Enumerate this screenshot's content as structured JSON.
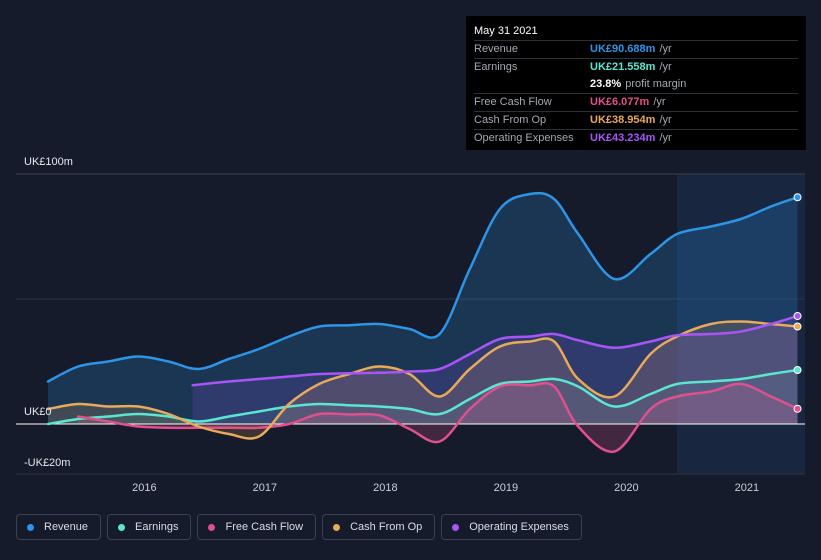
{
  "tooltip": {
    "date": "May 31 2021",
    "rows": [
      {
        "label": "Revenue",
        "value": "UK£90.688m",
        "unit": "/yr",
        "color": "#2d94e6"
      },
      {
        "label": "Earnings",
        "value": "UK£21.558m",
        "unit": "/yr",
        "color": "#5ce6d1"
      },
      {
        "label": "",
        "value": "23.8%",
        "unit": "profit margin",
        "color": "#ffffff"
      },
      {
        "label": "Free Cash Flow",
        "value": "UK£6.077m",
        "unit": "/yr",
        "color": "#e0508f"
      },
      {
        "label": "Cash From Op",
        "value": "UK£38.954m",
        "unit": "/yr",
        "color": "#e8a95a"
      },
      {
        "label": "Operating Expenses",
        "value": "UK£43.234m",
        "unit": "/yr",
        "color": "#a855f7"
      }
    ]
  },
  "axis": {
    "y_top_label": "UK£100m",
    "y_zero_label": "UK£0",
    "y_bottom_label": "-UK£20m",
    "x_ticks": [
      "2016",
      "2017",
      "2018",
      "2019",
      "2020",
      "2021"
    ]
  },
  "legend": [
    {
      "label": "Revenue",
      "color": "#2d94e6"
    },
    {
      "label": "Earnings",
      "color": "#5ce6d1"
    },
    {
      "label": "Free Cash Flow",
      "color": "#e0508f"
    },
    {
      "label": "Cash From Op",
      "color": "#e8a95a"
    },
    {
      "label": "Operating Expenses",
      "color": "#a855f7"
    }
  ],
  "chart_data": {
    "type": "line",
    "ylim": [
      -20,
      100
    ],
    "xlim": [
      2015.2,
      2021.42
    ],
    "highlight_start": 2020.42,
    "series": [
      {
        "name": "Revenue",
        "color": "#2d94e6",
        "x": [
          2015.2,
          2015.45,
          2015.7,
          2015.95,
          2016.2,
          2016.45,
          2016.7,
          2016.95,
          2017.2,
          2017.45,
          2017.7,
          2017.95,
          2018.2,
          2018.45,
          2018.7,
          2018.95,
          2019.2,
          2019.4,
          2019.6,
          2019.9,
          2020.2,
          2020.42,
          2020.7,
          2020.95,
          2021.2,
          2021.42
        ],
        "y": [
          17,
          23,
          25,
          27,
          25,
          22,
          26,
          30,
          35,
          39,
          39.5,
          40,
          38,
          36,
          62,
          86,
          92,
          90,
          76,
          58,
          68,
          76,
          79,
          82,
          87,
          90.7
        ]
      },
      {
        "name": "Earnings",
        "color": "#5ce6d1",
        "x": [
          2015.2,
          2015.45,
          2015.7,
          2015.95,
          2016.2,
          2016.45,
          2016.7,
          2016.95,
          2017.2,
          2017.45,
          2017.7,
          2017.95,
          2018.2,
          2018.45,
          2018.7,
          2018.95,
          2019.2,
          2019.4,
          2019.6,
          2019.9,
          2020.2,
          2020.42,
          2020.7,
          2020.95,
          2021.2,
          2021.42
        ],
        "y": [
          0,
          2,
          3,
          4,
          3,
          1,
          3,
          5,
          7,
          8,
          7.5,
          7,
          6,
          4,
          10,
          16,
          17,
          18,
          15,
          7,
          12,
          16,
          17,
          18,
          20,
          21.6
        ]
      },
      {
        "name": "Free Cash Flow",
        "color": "#e0508f",
        "x": [
          2015.45,
          2015.7,
          2015.95,
          2016.2,
          2016.45,
          2016.7,
          2016.95,
          2017.2,
          2017.45,
          2017.7,
          2017.95,
          2018.2,
          2018.45,
          2018.7,
          2018.95,
          2019.2,
          2019.4,
          2019.6,
          2019.9,
          2020.2,
          2020.42,
          2020.7,
          2020.95,
          2021.2,
          2021.42
        ],
        "y": [
          3,
          1,
          -1,
          -1.5,
          -1.5,
          -1.5,
          -1.5,
          0,
          4,
          3.8,
          3.5,
          -2,
          -7,
          6,
          15,
          15.5,
          15,
          -1,
          -11,
          6,
          11,
          13,
          16,
          11,
          6.1
        ]
      },
      {
        "name": "Cash From Op",
        "color": "#e8a95a",
        "x": [
          2015.2,
          2015.45,
          2015.7,
          2015.95,
          2016.2,
          2016.45,
          2016.7,
          2016.95,
          2017.2,
          2017.45,
          2017.7,
          2017.95,
          2018.2,
          2018.45,
          2018.7,
          2018.95,
          2019.2,
          2019.4,
          2019.6,
          2019.9,
          2020.2,
          2020.42,
          2020.7,
          2020.95,
          2021.2,
          2021.42
        ],
        "y": [
          6,
          8,
          7,
          7,
          4,
          -1,
          -4,
          -5,
          8,
          16,
          20,
          23,
          20,
          11,
          22,
          31,
          33,
          33,
          18,
          11,
          28,
          35,
          40,
          41,
          40,
          39
        ]
      },
      {
        "name": "Operating Expenses",
        "color": "#a855f7",
        "x": [
          2016.4,
          2016.7,
          2016.95,
          2017.2,
          2017.45,
          2017.7,
          2017.95,
          2018.2,
          2018.45,
          2018.7,
          2018.95,
          2019.2,
          2019.4,
          2019.6,
          2019.9,
          2020.2,
          2020.42,
          2020.7,
          2020.95,
          2021.2,
          2021.42
        ],
        "y": [
          15.5,
          17,
          18,
          19,
          20,
          20.3,
          20.5,
          21,
          22,
          28,
          34,
          35,
          36,
          33.5,
          30.5,
          33,
          35.5,
          36,
          37,
          40,
          43.2
        ]
      }
    ]
  }
}
